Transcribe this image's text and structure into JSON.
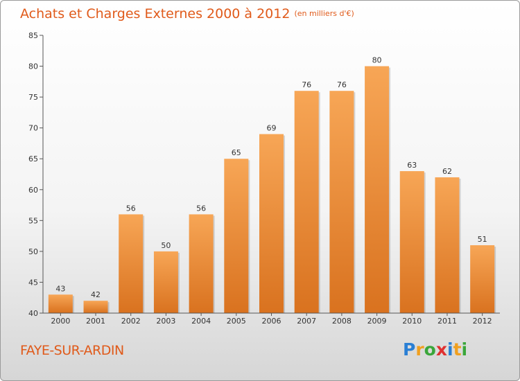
{
  "chart_title": "Achats et Charges Externes 2000 à 2012",
  "chart_subtitle": "(en milliers d'€)",
  "commune": "FAYE-SUR-ARDIN",
  "logo": {
    "text": "Proxiti",
    "letters": [
      {
        "ch": "P",
        "color": "#2a7fd4"
      },
      {
        "ch": "r",
        "color": "#f0a020"
      },
      {
        "ch": "o",
        "color": "#3aa63a"
      },
      {
        "ch": "x",
        "color": "#e03030"
      },
      {
        "ch": "i",
        "color": "#2a7fd4"
      },
      {
        "ch": "t",
        "color": "#f0a020"
      },
      {
        "ch": "i",
        "color": "#3aa63a"
      }
    ]
  },
  "colors": {
    "title": "#e05a1a",
    "bar_top": "#f7a656",
    "bar_bottom": "#d9721f",
    "axis": "#555555"
  },
  "chart_data": {
    "type": "bar",
    "title": "Achats et Charges Externes 2000 à 2012",
    "subtitle": "(en milliers d'€)",
    "categories": [
      "2000",
      "2001",
      "2002",
      "2003",
      "2004",
      "2005",
      "2006",
      "2007",
      "2008",
      "2009",
      "2010",
      "2011",
      "2012"
    ],
    "values": [
      43,
      42,
      56,
      50,
      56,
      65,
      69,
      76,
      76,
      80,
      63,
      62,
      51
    ],
    "ylim": [
      40,
      85
    ],
    "yticks": [
      40,
      45,
      50,
      55,
      60,
      65,
      70,
      75,
      80,
      85
    ],
    "grid": false,
    "data_labels": true
  }
}
